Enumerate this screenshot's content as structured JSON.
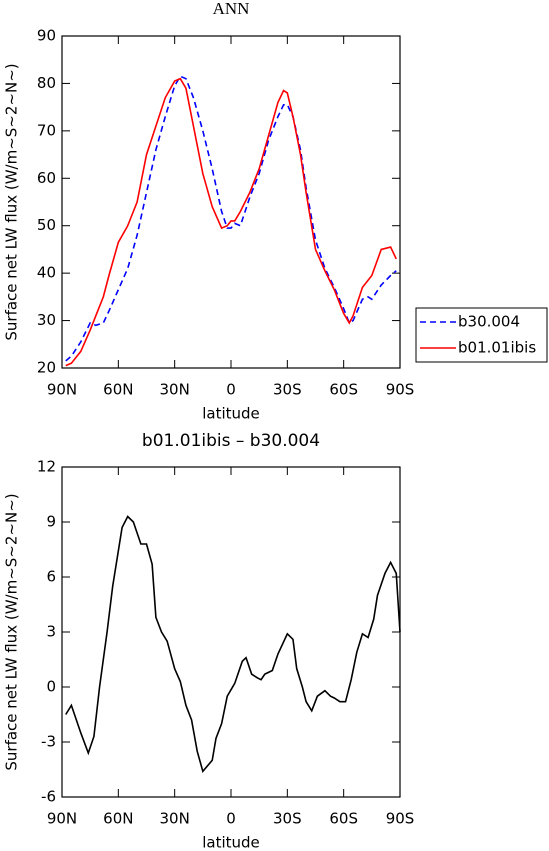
{
  "chart_data": [
    {
      "type": "line",
      "title": "ANN",
      "x_label": "latitude",
      "y_label": "Surface net LW flux (W/m~S~2~N~)",
      "x": [
        88,
        85,
        80,
        75,
        72,
        68,
        65,
        60,
        55,
        50,
        45,
        40,
        35,
        30,
        27,
        24,
        20,
        15,
        10,
        5,
        2,
        0,
        -2,
        -5,
        -10,
        -15,
        -20,
        -25,
        -28,
        -30,
        -33,
        -37,
        -40,
        -45,
        -50,
        -55,
        -60,
        -63,
        -65,
        -70,
        -73,
        -75,
        -80,
        -85,
        -88
      ],
      "series": [
        {
          "name": "b30.004",
          "color": "#0000ff",
          "linestyle": "dashed",
          "values": [
            21.5,
            22.5,
            25.5,
            29.5,
            29,
            29.5,
            32,
            36.5,
            41,
            48,
            57,
            66,
            73,
            79.5,
            81.5,
            81,
            77,
            70,
            62,
            53,
            49.5,
            49.5,
            50.5,
            50,
            56,
            61,
            68,
            73,
            75.5,
            75.5,
            73,
            66,
            58,
            47,
            41,
            37,
            32.5,
            29.5,
            30,
            34.5,
            35,
            34.5,
            37.5,
            39.5,
            40.5
          ]
        },
        {
          "name": "b01.01ibis",
          "color": "#ff0000",
          "linestyle": "solid",
          "values": [
            20.5,
            21,
            23.5,
            28,
            31,
            35,
            39.5,
            46.5,
            50,
            55,
            65,
            71,
            77,
            80.5,
            81,
            79,
            71,
            61,
            54,
            49.5,
            50,
            51,
            51,
            53,
            57,
            62,
            69,
            76,
            78.5,
            78,
            73,
            65,
            57,
            45,
            40.5,
            36.5,
            31.5,
            29.5,
            31,
            37,
            38.5,
            39.5,
            45,
            45.5,
            43
          ]
        }
      ],
      "xlim": [
        90,
        -90
      ],
      "xticks": [
        {
          "value": 90,
          "label": "90N"
        },
        {
          "value": 60,
          "label": "60N"
        },
        {
          "value": 30,
          "label": "30N"
        },
        0,
        {
          "value": -30,
          "label": "30S"
        },
        {
          "value": -60,
          "label": "60S"
        },
        {
          "value": -90,
          "label": "90S"
        }
      ],
      "ylim": [
        20,
        90
      ],
      "yticks": [
        20,
        30,
        40,
        50,
        60,
        70,
        80,
        90
      ],
      "legend": "right"
    },
    {
      "type": "line",
      "title": "b01.01ibis – b30.004",
      "x_label": "latitude",
      "y_label": "Surface net LW flux (W/m~S~2~N~)",
      "x": [
        88,
        85,
        80,
        76,
        73,
        70,
        66,
        63,
        58,
        55,
        52,
        48,
        45,
        42,
        40,
        37,
        34,
        30,
        27,
        24,
        21,
        18,
        15,
        10,
        8,
        5,
        2,
        -2,
        -6,
        -8,
        -11,
        -14,
        -16,
        -18,
        -22,
        -25,
        -30,
        -33,
        -35,
        -38,
        -40,
        -43,
        -46,
        -50,
        -53,
        -55,
        -58,
        -61,
        -64,
        -67,
        -70,
        -73,
        -76,
        -78,
        -82,
        -85,
        -88,
        -90
      ],
      "values": [
        -1.5,
        -1,
        -2.5,
        -3.6,
        -2.7,
        0,
        3,
        5.5,
        8.7,
        9.3,
        9,
        7.8,
        7.8,
        6.7,
        3.8,
        3,
        2.5,
        1,
        0.3,
        -1,
        -1.8,
        -3.5,
        -4.6,
        -4,
        -2.8,
        -2,
        -0.5,
        0.2,
        1.4,
        1.6,
        0.7,
        0.5,
        0.4,
        0.7,
        0.9,
        1.8,
        2.9,
        2.6,
        1,
        0,
        -0.8,
        -1.3,
        -0.5,
        -0.2,
        -0.5,
        -0.6,
        -0.8,
        -0.8,
        0.4,
        1.9,
        2.9,
        2.7,
        3.7,
        5,
        6.2,
        6.8,
        6.2,
        3
      ],
      "color": "#000000",
      "xlim": [
        90,
        -90
      ],
      "xticks": [
        {
          "value": 90,
          "label": "90N"
        },
        {
          "value": 60,
          "label": "60N"
        },
        {
          "value": 30,
          "label": "30N"
        },
        0,
        {
          "value": -30,
          "label": "30S"
        },
        {
          "value": -60,
          "label": "60S"
        },
        {
          "value": -90,
          "label": "90S"
        }
      ],
      "ylim": [
        -6,
        12
      ],
      "yticks": [
        -6,
        -3,
        0,
        3,
        6,
        9,
        12
      ]
    }
  ]
}
